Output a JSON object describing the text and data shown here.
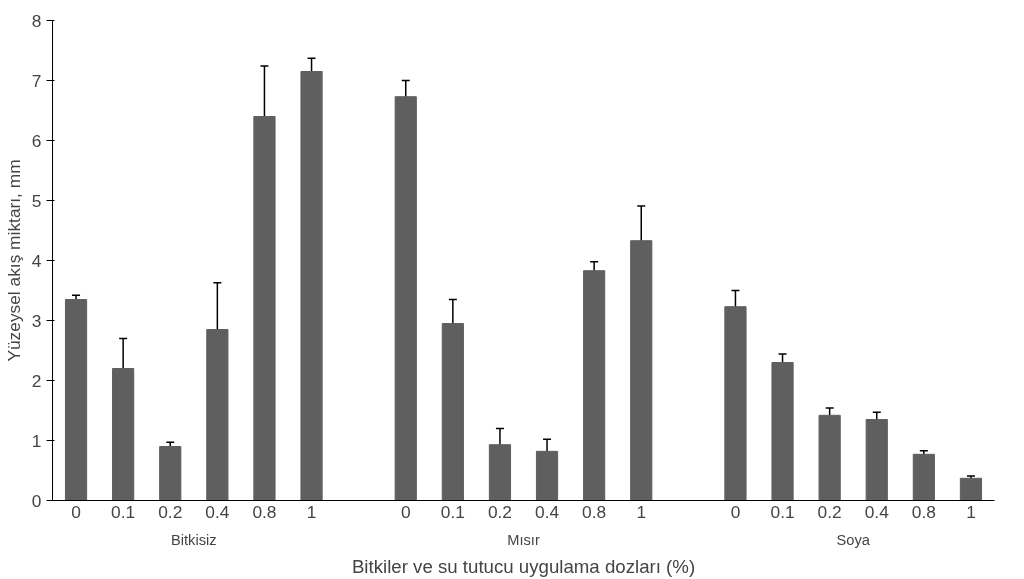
{
  "chart_data": {
    "type": "bar",
    "ylabel": "Yüzeysel akış miktarı, mm",
    "xlabel": "Bitkiler ve su tutucu uygulama dozları (%)",
    "categories": [
      "0",
      "0.1",
      "0.2",
      "0.4",
      "0.8",
      "1",
      null,
      "0",
      "0.1",
      "0.2",
      "0.4",
      "0.8",
      "1",
      null,
      "0",
      "0.1",
      "0.2",
      "0.4",
      "0.8",
      "1"
    ],
    "values": [
      3.35,
      2.2,
      0.9,
      2.85,
      6.4,
      7.15,
      null,
      6.73,
      2.95,
      0.93,
      0.82,
      3.83,
      4.33,
      null,
      3.23,
      2.3,
      1.42,
      1.35,
      0.77,
      0.37
    ],
    "errors": [
      0.07,
      0.5,
      0.07,
      0.78,
      0.84,
      0.22,
      null,
      0.27,
      0.4,
      0.27,
      0.2,
      0.15,
      0.58,
      null,
      0.27,
      0.14,
      0.12,
      0.12,
      0.06,
      0.04
    ],
    "color": "#5f5f5f",
    "annotations": [
      "Bitkisiz",
      "Mısır",
      "Soya"
    ],
    "ylim": [
      0,
      8
    ],
    "yticks": [
      0,
      1,
      2,
      3,
      4,
      5,
      6,
      7,
      8
    ],
    "grid": false
  }
}
